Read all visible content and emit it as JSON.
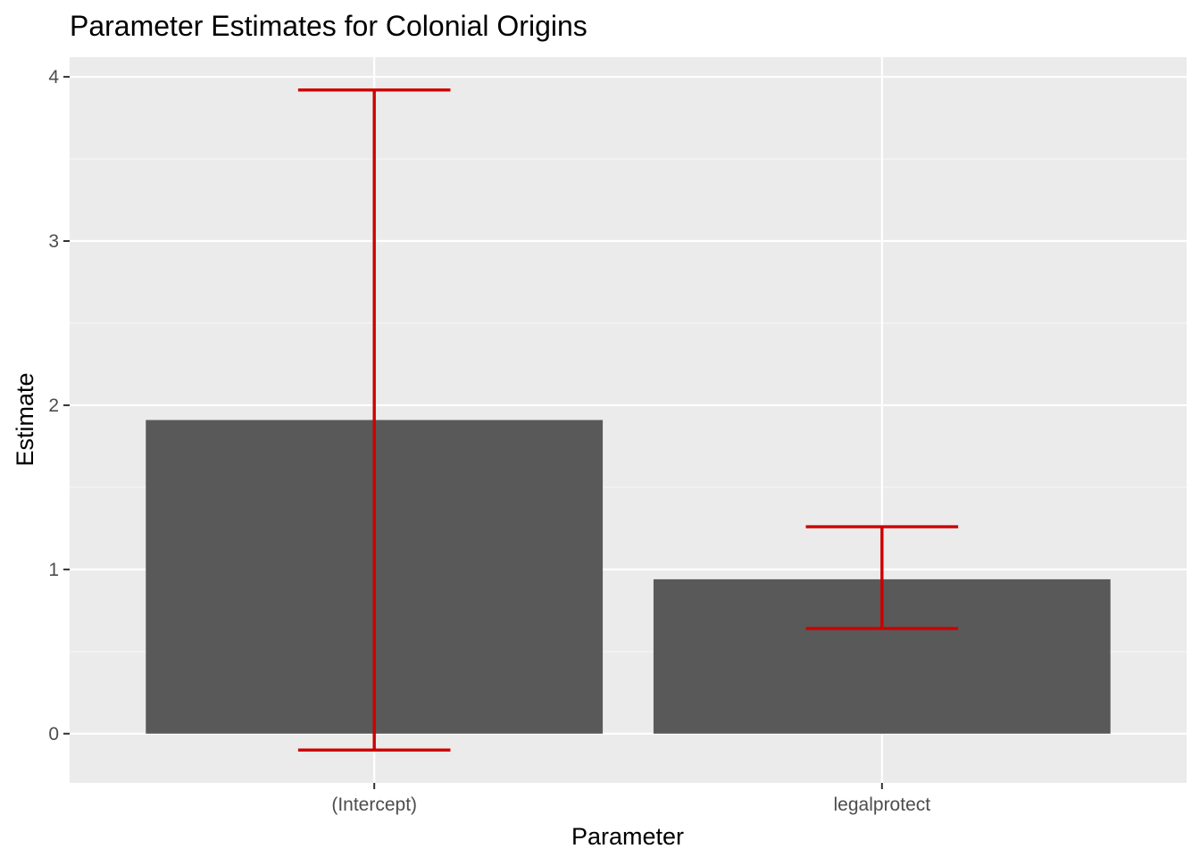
{
  "chart_data": {
    "type": "bar",
    "title": "Parameter Estimates for Colonial Origins",
    "xlabel": "Parameter",
    "ylabel": "Estimate",
    "categories": [
      "(Intercept)",
      "legalprotect"
    ],
    "values": [
      1.91,
      0.94
    ],
    "error_bars": [
      {
        "lower": -0.1,
        "upper": 3.92
      },
      {
        "lower": 0.64,
        "upper": 1.26
      }
    ],
    "ylim": [
      -0.3,
      4.12
    ],
    "yticks": [
      0,
      1,
      2,
      3,
      4
    ],
    "grid": true,
    "legend": "none",
    "colors": {
      "panel_background": "#ebebeb",
      "grid_major": "#ffffff",
      "grid_minor": "#f5f5f5",
      "bar_fill": "#595959",
      "error_bar": "#cc0000",
      "tick_mark": "#333333"
    }
  }
}
